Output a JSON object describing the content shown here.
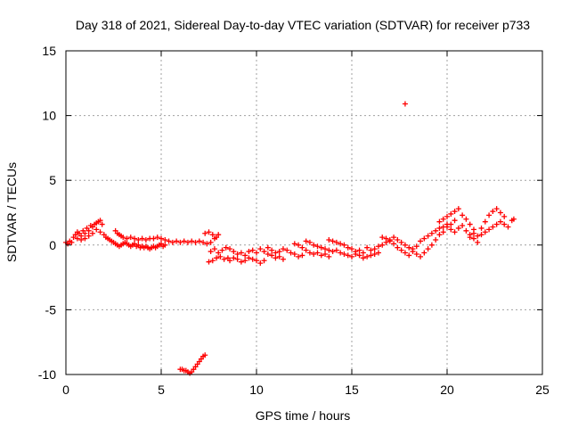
{
  "chart_data": {
    "type": "scatter",
    "title": "Day 318 of 2021, Sidereal Day-to-day VTEC variation (SDTVAR) for receiver p733",
    "xlabel": "GPS time / hours",
    "ylabel": "SDTVAR / TECUs",
    "xlim": [
      0,
      25
    ],
    "ylim": [
      -10,
      15
    ],
    "xticks": [
      0,
      5,
      10,
      15,
      20,
      25
    ],
    "yticks": [
      -10,
      -5,
      0,
      5,
      10,
      15
    ],
    "grid": true,
    "marker": "+",
    "color": "#ff0000",
    "series": [
      {
        "name": "SDTVAR",
        "points": [
          [
            0.0,
            0.2
          ],
          [
            0.1,
            0.1
          ],
          [
            0.2,
            0.3
          ],
          [
            0.3,
            0.2
          ],
          [
            0.4,
            0.6
          ],
          [
            0.5,
            0.8
          ],
          [
            0.6,
            0.5
          ],
          [
            0.7,
            0.9
          ],
          [
            0.8,
            0.7
          ],
          [
            0.9,
            1.1
          ],
          [
            1.0,
            0.9
          ],
          [
            1.1,
            1.3
          ],
          [
            1.2,
            1.1
          ],
          [
            1.3,
            1.5
          ],
          [
            1.4,
            1.4
          ],
          [
            1.5,
            1.6
          ],
          [
            1.6,
            1.7
          ],
          [
            1.7,
            1.8
          ],
          [
            1.8,
            1.9
          ],
          [
            1.9,
            1.6
          ],
          [
            0.6,
            1.0
          ],
          [
            0.8,
            0.4
          ],
          [
            1.0,
            0.5
          ],
          [
            1.2,
            0.7
          ],
          [
            1.4,
            0.9
          ],
          [
            1.6,
            1.2
          ],
          [
            1.8,
            1.0
          ],
          [
            2.0,
            0.8
          ],
          [
            2.1,
            0.6
          ],
          [
            2.2,
            0.5
          ],
          [
            2.3,
            0.4
          ],
          [
            2.4,
            0.3
          ],
          [
            2.5,
            0.2
          ],
          [
            2.6,
            0.1
          ],
          [
            2.7,
            0.0
          ],
          [
            2.8,
            -0.1
          ],
          [
            2.9,
            0.0
          ],
          [
            3.0,
            0.1
          ],
          [
            3.1,
            0.2
          ],
          [
            3.2,
            0.1
          ],
          [
            3.3,
            0.0
          ],
          [
            3.4,
            -0.1
          ],
          [
            3.5,
            0.0
          ],
          [
            3.6,
            0.1
          ],
          [
            3.7,
            -0.1
          ],
          [
            3.8,
            0.0
          ],
          [
            3.9,
            -0.2
          ],
          [
            4.0,
            -0.1
          ],
          [
            4.1,
            -0.2
          ],
          [
            4.2,
            -0.1
          ],
          [
            4.3,
            -0.2
          ],
          [
            4.4,
            -0.3
          ],
          [
            4.5,
            -0.2
          ],
          [
            4.6,
            -0.1
          ],
          [
            4.7,
            -0.2
          ],
          [
            4.8,
            -0.1
          ],
          [
            4.9,
            0.0
          ],
          [
            5.0,
            0.1
          ],
          [
            5.1,
            -0.1
          ],
          [
            5.2,
            0.0
          ],
          [
            2.6,
            1.1
          ],
          [
            2.7,
            0.9
          ],
          [
            2.8,
            0.8
          ],
          [
            2.9,
            0.7
          ],
          [
            3.0,
            0.6
          ],
          [
            3.2,
            0.5
          ],
          [
            3.4,
            0.6
          ],
          [
            3.6,
            0.5
          ],
          [
            3.8,
            0.4
          ],
          [
            4.0,
            0.5
          ],
          [
            4.2,
            0.4
          ],
          [
            4.4,
            0.5
          ],
          [
            4.6,
            0.5
          ],
          [
            4.8,
            0.6
          ],
          [
            5.0,
            0.5
          ],
          [
            5.2,
            0.4
          ],
          [
            5.4,
            0.3
          ],
          [
            5.6,
            0.2
          ],
          [
            5.8,
            0.3
          ],
          [
            6.0,
            0.2
          ],
          [
            6.2,
            0.3
          ],
          [
            6.4,
            0.2
          ],
          [
            6.6,
            0.3
          ],
          [
            6.8,
            0.2
          ],
          [
            7.0,
            0.3
          ],
          [
            7.2,
            0.2
          ],
          [
            7.4,
            0.1
          ],
          [
            7.6,
            0.2
          ],
          [
            7.8,
            0.5
          ],
          [
            8.0,
            0.8
          ],
          [
            7.3,
            0.9
          ],
          [
            7.5,
            1.0
          ],
          [
            7.7,
            0.8
          ],
          [
            7.9,
            0.6
          ],
          [
            7.5,
            -1.3
          ],
          [
            7.7,
            -1.2
          ],
          [
            7.9,
            -1.0
          ],
          [
            8.1,
            -0.9
          ],
          [
            8.3,
            -1.1
          ],
          [
            8.5,
            -1.0
          ],
          [
            7.6,
            -0.5
          ],
          [
            7.8,
            -0.3
          ],
          [
            8.0,
            -0.6
          ],
          [
            8.2,
            -0.4
          ],
          [
            8.4,
            -0.2
          ],
          [
            8.6,
            -0.3
          ],
          [
            8.8,
            -0.5
          ],
          [
            9.0,
            -0.7
          ],
          [
            9.2,
            -0.6
          ],
          [
            9.4,
            -0.8
          ],
          [
            8.6,
            -1.2
          ],
          [
            8.8,
            -1.0
          ],
          [
            9.0,
            -1.1
          ],
          [
            9.2,
            -1.3
          ],
          [
            9.4,
            -1.2
          ],
          [
            9.6,
            -1.0
          ],
          [
            9.8,
            -1.1
          ],
          [
            10.0,
            -1.2
          ],
          [
            10.2,
            -1.4
          ],
          [
            10.4,
            -1.2
          ],
          [
            9.6,
            -0.5
          ],
          [
            9.8,
            -0.4
          ],
          [
            10.0,
            -0.6
          ],
          [
            10.2,
            -0.3
          ],
          [
            10.4,
            -0.5
          ],
          [
            10.6,
            -0.7
          ],
          [
            10.8,
            -0.8
          ],
          [
            11.0,
            -1.0
          ],
          [
            11.2,
            -0.9
          ],
          [
            11.4,
            -1.1
          ],
          [
            10.6,
            -0.2
          ],
          [
            10.8,
            -0.4
          ],
          [
            11.0,
            -0.6
          ],
          [
            11.2,
            -0.5
          ],
          [
            11.4,
            -0.3
          ],
          [
            11.6,
            -0.4
          ],
          [
            11.8,
            -0.6
          ],
          [
            12.0,
            -0.7
          ],
          [
            12.2,
            -0.9
          ],
          [
            12.4,
            -0.8
          ],
          [
            12.0,
            0.1
          ],
          [
            12.2,
            0.0
          ],
          [
            12.4,
            -0.2
          ],
          [
            12.6,
            -0.4
          ],
          [
            12.8,
            -0.6
          ],
          [
            13.0,
            -0.7
          ],
          [
            13.2,
            -0.6
          ],
          [
            13.4,
            -0.8
          ],
          [
            13.6,
            -0.7
          ],
          [
            13.8,
            -0.9
          ],
          [
            12.6,
            0.3
          ],
          [
            12.8,
            0.2
          ],
          [
            13.0,
            0.0
          ],
          [
            13.2,
            -0.1
          ],
          [
            13.4,
            -0.2
          ],
          [
            13.6,
            -0.3
          ],
          [
            13.8,
            -0.4
          ],
          [
            14.0,
            -0.5
          ],
          [
            14.2,
            -0.4
          ],
          [
            14.4,
            -0.6
          ],
          [
            13.8,
            0.4
          ],
          [
            14.0,
            0.3
          ],
          [
            14.2,
            0.2
          ],
          [
            14.4,
            0.1
          ],
          [
            14.6,
            0.0
          ],
          [
            14.8,
            -0.2
          ],
          [
            15.0,
            -0.3
          ],
          [
            15.2,
            -0.5
          ],
          [
            15.4,
            -0.4
          ],
          [
            15.6,
            -0.6
          ],
          [
            14.6,
            -0.7
          ],
          [
            14.8,
            -0.8
          ],
          [
            15.0,
            -0.9
          ],
          [
            15.2,
            -0.7
          ],
          [
            15.4,
            -0.8
          ],
          [
            15.6,
            -1.0
          ],
          [
            15.8,
            -0.9
          ],
          [
            16.0,
            -0.8
          ],
          [
            16.2,
            -0.7
          ],
          [
            16.4,
            -0.6
          ],
          [
            15.8,
            -0.2
          ],
          [
            16.0,
            -0.4
          ],
          [
            16.2,
            -0.3
          ],
          [
            16.4,
            -0.1
          ],
          [
            16.6,
            0.0
          ],
          [
            16.8,
            0.2
          ],
          [
            17.0,
            0.3
          ],
          [
            17.2,
            0.1
          ],
          [
            17.4,
            -0.2
          ],
          [
            17.6,
            -0.4
          ],
          [
            16.6,
            0.6
          ],
          [
            16.8,
            0.5
          ],
          [
            17.0,
            0.4
          ],
          [
            17.2,
            0.6
          ],
          [
            17.4,
            0.4
          ],
          [
            17.6,
            0.2
          ],
          [
            17.8,
            0.0
          ],
          [
            18.0,
            -0.2
          ],
          [
            18.2,
            -0.5
          ],
          [
            18.4,
            -0.7
          ],
          [
            17.8,
            -0.6
          ],
          [
            18.0,
            -0.8
          ],
          [
            18.2,
            -0.3
          ],
          [
            18.4,
            -0.1
          ],
          [
            18.6,
            0.3
          ],
          [
            18.8,
            0.5
          ],
          [
            19.0,
            0.7
          ],
          [
            19.2,
            0.9
          ],
          [
            19.4,
            1.1
          ],
          [
            19.6,
            1.3
          ],
          [
            18.6,
            -0.9
          ],
          [
            18.8,
            -0.6
          ],
          [
            19.0,
            -0.3
          ],
          [
            19.2,
            0.0
          ],
          [
            19.4,
            0.4
          ],
          [
            19.6,
            0.8
          ],
          [
            19.8,
            1.0
          ],
          [
            20.0,
            1.4
          ],
          [
            20.2,
            1.6
          ],
          [
            20.4,
            1.9
          ],
          [
            19.6,
            1.8
          ],
          [
            19.8,
            2.0
          ],
          [
            20.0,
            2.2
          ],
          [
            20.2,
            2.4
          ],
          [
            20.4,
            2.6
          ],
          [
            20.6,
            2.8
          ],
          [
            20.8,
            2.3
          ],
          [
            21.0,
            2.0
          ],
          [
            21.2,
            1.6
          ],
          [
            21.4,
            1.2
          ],
          [
            19.8,
            1.4
          ],
          [
            20.0,
            1.6
          ],
          [
            20.2,
            1.2
          ],
          [
            20.4,
            1.0
          ],
          [
            20.6,
            1.3
          ],
          [
            20.8,
            1.5
          ],
          [
            21.0,
            1.1
          ],
          [
            21.2,
            0.8
          ],
          [
            21.4,
            0.5
          ],
          [
            21.6,
            0.2
          ],
          [
            21.2,
            0.6
          ],
          [
            21.4,
            0.9
          ],
          [
            21.6,
            0.7
          ],
          [
            21.8,
            1.3
          ],
          [
            22.0,
            1.8
          ],
          [
            22.2,
            2.3
          ],
          [
            22.4,
            2.6
          ],
          [
            22.6,
            2.8
          ],
          [
            22.8,
            2.5
          ],
          [
            23.0,
            2.2
          ],
          [
            21.8,
            0.8
          ],
          [
            22.0,
            1.0
          ],
          [
            22.2,
            1.2
          ],
          [
            22.4,
            1.4
          ],
          [
            22.6,
            1.6
          ],
          [
            22.8,
            1.8
          ],
          [
            23.0,
            1.6
          ],
          [
            23.2,
            1.4
          ],
          [
            23.4,
            1.9
          ],
          [
            23.5,
            2.0
          ],
          [
            17.8,
            10.9
          ],
          [
            6.0,
            -9.6
          ],
          [
            6.1,
            -9.6
          ],
          [
            6.2,
            -9.7
          ],
          [
            6.3,
            -9.7
          ],
          [
            6.4,
            -9.8
          ],
          [
            6.5,
            -9.9
          ],
          [
            6.6,
            -9.8
          ],
          [
            6.7,
            -9.6
          ],
          [
            6.8,
            -9.4
          ],
          [
            6.9,
            -9.2
          ],
          [
            7.0,
            -9.0
          ],
          [
            7.1,
            -8.8
          ],
          [
            7.2,
            -8.6
          ],
          [
            7.3,
            -8.5
          ]
        ]
      }
    ]
  }
}
